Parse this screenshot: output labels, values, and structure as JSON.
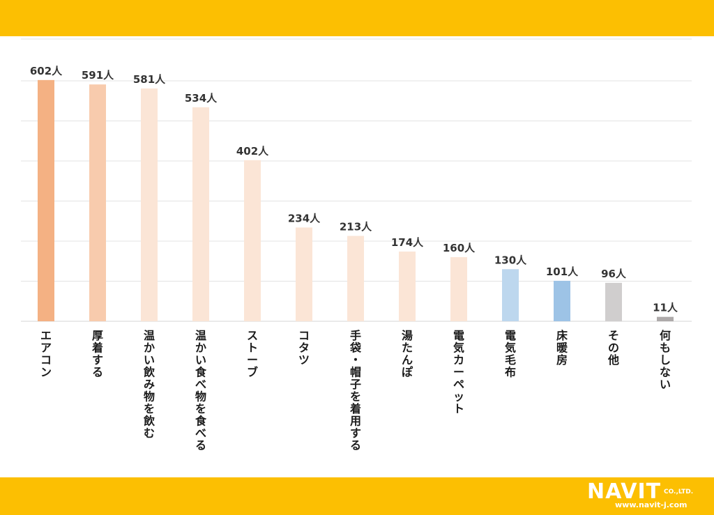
{
  "colors": {
    "band": "#fcbf02",
    "grid": "#e3e3e3",
    "axis": "#d4d4d4",
    "label": "#333333",
    "category_label": "#1a1a1a"
  },
  "chart_data": {
    "type": "bar",
    "title": "",
    "xlabel": "",
    "ylabel": "",
    "unit": "人",
    "ylim": [
      0,
      600
    ],
    "grid": true,
    "categories": [
      "エアコン",
      "厚着する",
      "温かい飲み物を飲む",
      "温かい食べ物を食べる",
      "ストーブ",
      "コタツ",
      "手袋・帽子を着用する",
      "湯たんぽ",
      "電気カーペット",
      "電気毛布",
      "床暖房",
      "その他",
      "何もしない"
    ],
    "values": [
      602,
      591,
      581,
      534,
      402,
      234,
      213,
      174,
      160,
      130,
      101,
      96,
      11
    ],
    "value_labels": [
      "602人",
      "591人",
      "581人",
      "534人",
      "402人",
      "234人",
      "213人",
      "174人",
      "160人",
      "130人",
      "101人",
      "96人",
      "11人"
    ],
    "bar_colors": [
      "#f4b183",
      "#f8cbad",
      "#fbe5d6",
      "#fbe5d6",
      "#fbe5d6",
      "#fbe5d6",
      "#fbe5d6",
      "#fbe5d6",
      "#fbe5d6",
      "#bdd7ee",
      "#9dc3e6",
      "#d0cece",
      "#aeaaaa"
    ]
  },
  "logo": {
    "name": "NAVIT",
    "suffix": "CO.,LTD.",
    "url": "www.navit-j.com"
  }
}
